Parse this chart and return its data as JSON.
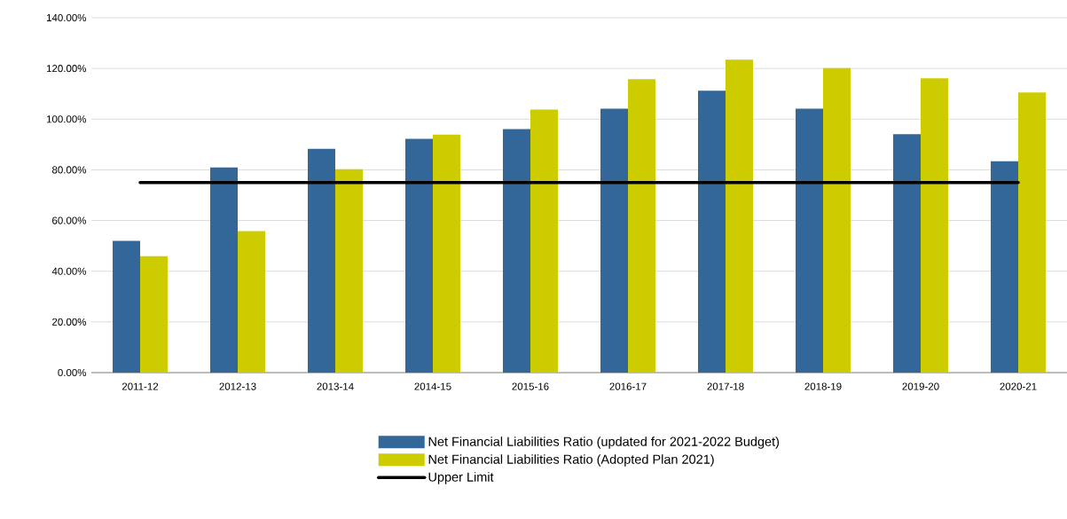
{
  "chart_data": {
    "type": "bar",
    "categories": [
      "2011-12",
      "2012-13",
      "2013-14",
      "2014-15",
      "2015-16",
      "2016-17",
      "2017-18",
      "2018-19",
      "2019-20",
      "2020-21"
    ],
    "series": [
      {
        "name": "Net Financial Liabilities Ratio (updated for 2021-2022 Budget)",
        "color": "#336699",
        "values": [
          52.0,
          80.9,
          88.3,
          92.2,
          96.1,
          104.1,
          111.2,
          104.1,
          94.1,
          83.4
        ]
      },
      {
        "name": "Net Financial Liabilities Ratio (Adopted Plan 2021)",
        "color": "#cccc00",
        "values": [
          45.9,
          55.8,
          80.2,
          93.9,
          103.8,
          115.8,
          123.5,
          120.1,
          116.1,
          110.5
        ]
      },
      {
        "name": "Upper Limit",
        "type": "line",
        "color": "#000000",
        "values": [
          75,
          75,
          75,
          75,
          75,
          75,
          75,
          75,
          75,
          75
        ]
      }
    ],
    "ylim": [
      0,
      140
    ],
    "yticks": [
      {
        "value": 0,
        "label": "0.00%"
      },
      {
        "value": 20,
        "label": "20.00%"
      },
      {
        "value": 40,
        "label": "40.00%"
      },
      {
        "value": 60,
        "label": "60.00%"
      },
      {
        "value": 80,
        "label": "80.00%"
      },
      {
        "value": 100,
        "label": "100.00%"
      },
      {
        "value": 120,
        "label": "120.00%"
      },
      {
        "value": 140,
        "label": "140.00%"
      }
    ],
    "grid": "y",
    "legend": "bottom"
  }
}
